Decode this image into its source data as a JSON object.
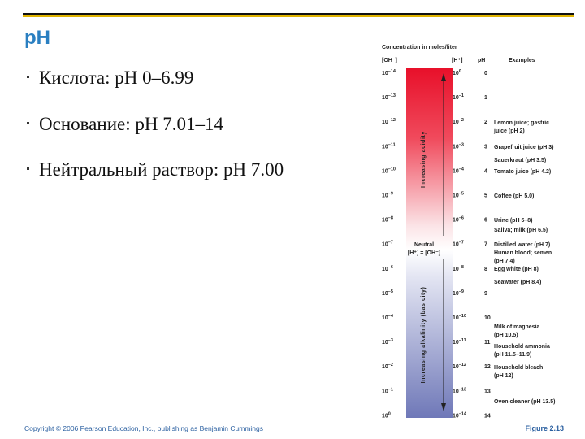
{
  "title": "pH",
  "bullets": [
    "Кислота:  pH 0–6.99",
    "Основание:  pH 7.01–14",
    "Нейтральный раствор:  pH 7.00"
  ],
  "figure": {
    "heading": "Concentration in moles/liter",
    "columns": [
      "[OH⁻]",
      "[H⁺]",
      "pH",
      "Examples"
    ],
    "rows": [
      {
        "oh": [
          "10",
          "–14"
        ],
        "h": [
          "10",
          "0"
        ],
        "ph": "0"
      },
      {
        "oh": [
          "10",
          "–13"
        ],
        "h": [
          "10",
          "–1"
        ],
        "ph": "1"
      },
      {
        "oh": [
          "10",
          "–12"
        ],
        "h": [
          "10",
          "–2"
        ],
        "ph": "2"
      },
      {
        "oh": [
          "10",
          "–11"
        ],
        "h": [
          "10",
          "–3"
        ],
        "ph": "3"
      },
      {
        "oh": [
          "10",
          "–10"
        ],
        "h": [
          "10",
          "–4"
        ],
        "ph": "4"
      },
      {
        "oh": [
          "10",
          "–9"
        ],
        "h": [
          "10",
          "–5"
        ],
        "ph": "5"
      },
      {
        "oh": [
          "10",
          "–8"
        ],
        "h": [
          "10",
          "–6"
        ],
        "ph": "6"
      },
      {
        "oh": [
          "10",
          "–7"
        ],
        "h": [
          "10",
          "–7"
        ],
        "ph": "7"
      },
      {
        "oh": [
          "10",
          "–6"
        ],
        "h": [
          "10",
          "–8"
        ],
        "ph": "8"
      },
      {
        "oh": [
          "10",
          "–5"
        ],
        "h": [
          "10",
          "–9"
        ],
        "ph": "9"
      },
      {
        "oh": [
          "10",
          "–4"
        ],
        "h": [
          "10",
          "–10"
        ],
        "ph": "10"
      },
      {
        "oh": [
          "10",
          "–3"
        ],
        "h": [
          "10",
          "–11"
        ],
        "ph": "11"
      },
      {
        "oh": [
          "10",
          "–2"
        ],
        "h": [
          "10",
          "–12"
        ],
        "ph": "12"
      },
      {
        "oh": [
          "10",
          "–1"
        ],
        "h": [
          "10",
          "–13"
        ],
        "ph": "13"
      },
      {
        "oh": [
          "10",
          "0"
        ],
        "h": [
          "10",
          "–14"
        ],
        "ph": "14"
      }
    ],
    "acidity": "Increasing acidity",
    "alkalinity": "Increasing alkalinity (basicity)",
    "neutral": "Neutral",
    "neutral_eq": "[H⁺] = [OH⁻]",
    "examples": [
      [
        "Lemon juice; gastric",
        "juice (pH 2)"
      ],
      [
        "Grapefruit juice (pH 3)"
      ],
      [
        "Sauerkraut (pH 3.5)"
      ],
      [
        "Tomato juice (pH 4.2)"
      ],
      [
        "Coffee (pH 5.0)"
      ],
      [
        "Urine (pH 5–8)"
      ],
      [
        "Saliva; milk (pH 6.5)"
      ],
      [
        "Distilled water (pH 7)"
      ],
      [
        "Human blood; semen",
        "(pH 7.4)"
      ],
      [
        "Egg white (pH 8)"
      ],
      [
        "Seawater (pH 8.4)"
      ],
      [
        "Milk of magnesia",
        "(pH 10.5)"
      ],
      [
        "Household ammonia",
        "(pH 11.5–11.9)"
      ],
      [
        "Household bleach",
        "(pH 12)"
      ],
      [
        "Oven cleaner (pH 13.5)"
      ]
    ]
  },
  "footer": {
    "copyright": "Copyright © 2006 Pearson Education, Inc., publishing as Benjamin Cummings",
    "figure": "Figure 2.13"
  }
}
